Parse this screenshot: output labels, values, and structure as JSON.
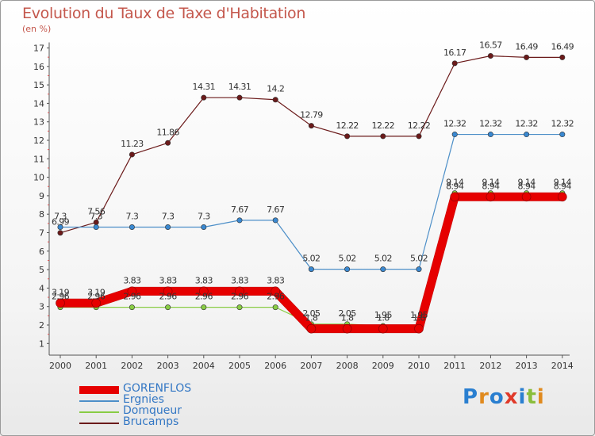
{
  "chart_data": {
    "type": "line",
    "title": "Evolution du Taux de Taxe d'Habitation",
    "ylabel": "(en %)",
    "categories": [
      "2000",
      "2001",
      "2002",
      "2003",
      "2004",
      "2005",
      "2006",
      "2007",
      "2008",
      "2009",
      "2010",
      "2011",
      "2012",
      "2013",
      "2014"
    ],
    "yticks": [
      "1",
      "2",
      "3",
      "4",
      "5",
      "6",
      "7",
      "8",
      "9",
      "10",
      "11",
      "12",
      "13",
      "14",
      "15",
      "16",
      "17"
    ],
    "ylim": [
      0.5,
      17.3
    ],
    "grid": false,
    "legend_position": "bottom-left",
    "series": [
      {
        "name": "GORENFLOS",
        "color": "#e60000",
        "values": [
          3.19,
          3.19,
          3.83,
          3.83,
          3.83,
          3.83,
          3.83,
          1.8,
          1.8,
          1.8,
          1.8,
          8.94,
          8.94,
          8.94,
          8.94
        ],
        "labels": [
          "3.19",
          "3.19",
          "3.83",
          "3.83",
          "3.83",
          "3.83",
          "3.83",
          "1.8",
          "1.8",
          "1.8",
          "1.8",
          "8.94",
          "8.94",
          "8.94",
          "8.94"
        ]
      },
      {
        "name": "Ergnies",
        "color": "#4d8fc8",
        "values": [
          7.3,
          7.3,
          7.3,
          7.3,
          7.3,
          7.67,
          7.67,
          5.02,
          5.02,
          5.02,
          5.02,
          12.32,
          12.32,
          12.32,
          12.32
        ],
        "labels": [
          "7.3",
          "7.3",
          "7.3",
          "7.3",
          "7.3",
          "7.67",
          "7.67",
          "5.02",
          "5.02",
          "5.02",
          "5.02",
          "12.32",
          "12.32",
          "12.32",
          "12.32"
        ]
      },
      {
        "name": "Domqueur",
        "color": "#88cc44",
        "values": [
          2.96,
          2.96,
          2.96,
          2.96,
          2.96,
          2.96,
          2.96,
          2.05,
          2.05,
          1.95,
          1.95,
          9.14,
          9.14,
          9.14,
          9.14
        ],
        "labels": [
          "2.96",
          "2.96",
          "2.96",
          "2.96",
          "2.96",
          "2.96",
          "2.96",
          "2.05",
          "2.05",
          "1.95",
          "1.95",
          "9.14",
          "9.14",
          "9.14",
          "9.14"
        ]
      },
      {
        "name": "Brucamps",
        "color": "#6b1a1a",
        "values": [
          6.99,
          7.56,
          11.23,
          11.86,
          14.31,
          14.31,
          14.2,
          12.79,
          12.22,
          12.22,
          12.22,
          16.17,
          16.57,
          16.49,
          16.49
        ],
        "labels": [
          "6.99",
          "7.56",
          "11.23",
          "11.86",
          "14.31",
          "14.31",
          "14.2",
          "12.79",
          "12.22",
          "12.22",
          "12.22",
          "16.17",
          "16.57",
          "16.49",
          "16.49"
        ]
      }
    ]
  },
  "logo": {
    "text": "Proxiti",
    "letters": [
      "P",
      "r",
      "o",
      "x",
      "i",
      "t",
      "i"
    ],
    "colors": [
      "#2a7fd0",
      "#e08a1e",
      "#2a7fd0",
      "#e03a2a",
      "#2a7fd0",
      "#8abe3c",
      "#e08a1e"
    ]
  }
}
